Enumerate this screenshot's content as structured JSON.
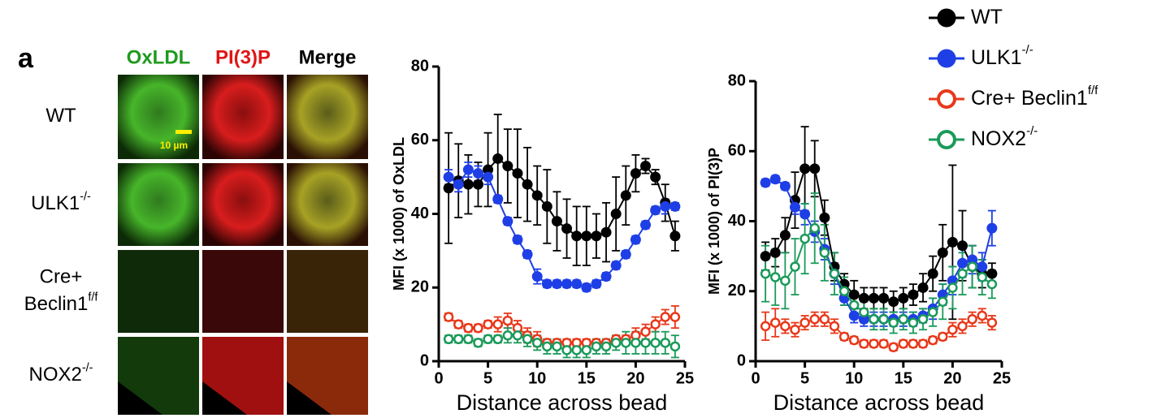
{
  "panel_label": "a",
  "image_panel": {
    "columns": [
      {
        "text": "OxLDL",
        "color": "#1e9a1e"
      },
      {
        "text": "PI(3)P",
        "color": "#e01515"
      },
      {
        "text": "Merge",
        "color": "#000000"
      }
    ],
    "rows": [
      {
        "lines": [
          "WT"
        ]
      },
      {
        "lines": [
          "ULK1"
        ],
        "sup": "-/-"
      },
      {
        "lines": [
          "Cre+",
          "Beclin1"
        ],
        "sup": "f/f"
      },
      {
        "lines": [
          "NOX2"
        ],
        "sup": "-/-"
      }
    ],
    "scale_bar": "10 µm"
  },
  "chart_data": [
    {
      "type": "line",
      "y_label": "MFI (x 1000) of OxLDL",
      "x_label": "Distance across bead",
      "x": [
        1,
        2,
        3,
        4,
        5,
        6,
        7,
        8,
        9,
        10,
        11,
        12,
        13,
        14,
        15,
        16,
        17,
        18,
        19,
        20,
        21,
        22,
        23,
        24
      ],
      "xlim": [
        0,
        25
      ],
      "xticks": [
        0,
        5,
        10,
        15,
        20,
        25
      ],
      "ylim": [
        0,
        80
      ],
      "yticks": [
        0,
        20,
        40,
        60,
        80
      ],
      "series": [
        {
          "color": "#000000",
          "marker": "filled",
          "values": [
            47,
            49,
            48,
            48,
            52,
            55,
            53,
            51,
            48,
            45,
            42,
            38,
            36,
            34,
            34,
            34,
            35,
            40,
            45,
            51,
            53,
            50,
            43,
            34
          ],
          "errors": [
            15,
            10,
            8,
            6,
            10,
            12,
            10,
            12,
            10,
            8,
            10,
            8,
            8,
            8,
            8,
            6,
            8,
            10,
            8,
            5,
            2,
            2,
            5,
            4
          ]
        },
        {
          "color": "#1f3fe6",
          "marker": "filled",
          "values": [
            50,
            48,
            52,
            51,
            50,
            44,
            38,
            33,
            29,
            23,
            21,
            21,
            21,
            21,
            20,
            21,
            23,
            26,
            29,
            33,
            37,
            41,
            42,
            42
          ],
          "errors": [
            2,
            2,
            2,
            2,
            2,
            1,
            1,
            1,
            1,
            2,
            1,
            1,
            1,
            1,
            1,
            1,
            1,
            1,
            1,
            1,
            1,
            1,
            2,
            1
          ]
        },
        {
          "color": "#e8381a",
          "marker": "open",
          "values": [
            12,
            10,
            9,
            9,
            10,
            10,
            11,
            9,
            7,
            6,
            5,
            5,
            5,
            5,
            5,
            5,
            5,
            6,
            6,
            7,
            8,
            10,
            12,
            12
          ],
          "errors": [
            1,
            1,
            1,
            1,
            1,
            2,
            2,
            2,
            2,
            2,
            1,
            1,
            1,
            1,
            1,
            1,
            1,
            1,
            1,
            2,
            2,
            2,
            2,
            3
          ]
        },
        {
          "color": "#1a9a5a",
          "marker": "open",
          "values": [
            6,
            6,
            6,
            5,
            6,
            6,
            7,
            7,
            6,
            5,
            4,
            4,
            3,
            3,
            3,
            4,
            4,
            5,
            5,
            5,
            5,
            5,
            5,
            4
          ],
          "errors": [
            1,
            1,
            1,
            1,
            1,
            1,
            2,
            2,
            2,
            2,
            2,
            2,
            2,
            2,
            2,
            2,
            2,
            2,
            3,
            3,
            3,
            3,
            3,
            3
          ]
        }
      ]
    },
    {
      "type": "line",
      "y_label": "MFI (x 1000) of PI(3)P",
      "x_label": "Distance across bead",
      "x": [
        1,
        2,
        3,
        4,
        5,
        6,
        7,
        8,
        9,
        10,
        11,
        12,
        13,
        14,
        15,
        16,
        17,
        18,
        19,
        20,
        21,
        22,
        23,
        24
      ],
      "xlim": [
        0,
        25
      ],
      "xticks": [
        0,
        5,
        10,
        15,
        20,
        25
      ],
      "ylim": [
        0,
        80
      ],
      "yticks": [
        0,
        20,
        40,
        60,
        80
      ],
      "series": [
        {
          "name": "WT",
          "color": "#000000",
          "marker": "filled",
          "values": [
            30,
            31,
            36,
            46,
            55,
            55,
            41,
            27,
            22,
            19,
            18,
            18,
            18,
            17,
            18,
            19,
            21,
            25,
            31,
            34,
            33,
            27,
            25,
            25
          ],
          "errors": [
            4,
            4,
            5,
            8,
            12,
            8,
            5,
            4,
            3,
            4,
            3,
            3,
            3,
            3,
            3,
            3,
            4,
            5,
            8,
            22,
            10,
            6,
            4,
            3
          ]
        },
        {
          "name": "ULK1",
          "name_sup": "-/-",
          "color": "#1f3fe6",
          "marker": "filled",
          "values": [
            51,
            52,
            50,
            44,
            42,
            37,
            32,
            25,
            18,
            13,
            12,
            12,
            12,
            12,
            12,
            12,
            13,
            15,
            19,
            23,
            28,
            29,
            27,
            38
          ],
          "errors": [
            1,
            1,
            1,
            2,
            3,
            3,
            3,
            3,
            2,
            2,
            2,
            2,
            2,
            2,
            2,
            2,
            2,
            3,
            3,
            4,
            4,
            4,
            4,
            5
          ]
        },
        {
          "name": "Cre+ Beclin1",
          "name_sup": "f/f",
          "color": "#e8381a",
          "marker": "open",
          "values": [
            10,
            11,
            10,
            9,
            11,
            12,
            12,
            10,
            7,
            6,
            5,
            5,
            5,
            4,
            5,
            5,
            5,
            6,
            7,
            9,
            10,
            12,
            13,
            11
          ],
          "errors": [
            4,
            4,
            2,
            2,
            2,
            2,
            2,
            2,
            1,
            1,
            1,
            1,
            1,
            1,
            1,
            1,
            1,
            1,
            1,
            2,
            2,
            2,
            2,
            2
          ]
        },
        {
          "name": "NOX2",
          "name_sup": "-/-",
          "color": "#1a9a5a",
          "marker": "open",
          "values": [
            25,
            24,
            23,
            27,
            35,
            38,
            31,
            25,
            20,
            16,
            14,
            12,
            12,
            11,
            12,
            11,
            12,
            14,
            17,
            21,
            25,
            27,
            24,
            22
          ],
          "errors": [
            8,
            8,
            8,
            8,
            10,
            10,
            8,
            6,
            4,
            3,
            3,
            3,
            3,
            3,
            3,
            3,
            3,
            4,
            5,
            6,
            6,
            6,
            5,
            4
          ]
        }
      ]
    }
  ]
}
